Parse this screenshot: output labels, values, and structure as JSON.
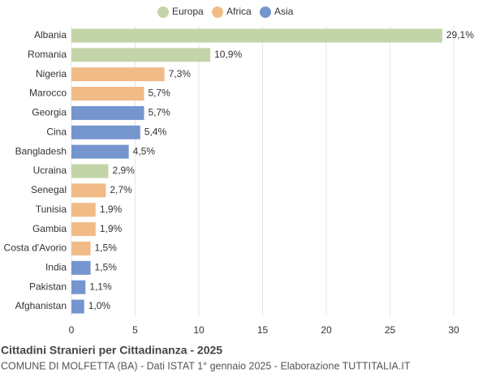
{
  "chart_data": {
    "type": "bar",
    "orientation": "horizontal",
    "title": "Cittadini Stranieri per Cittadinanza - 2025",
    "subtitle": "COMUNE DI MOLFETTA (BA) - Dati ISTAT 1° gennaio 2025 - Elaborazione TUTTITALIA.IT",
    "categories": [
      "Albania",
      "Romania",
      "Nigeria",
      "Marocco",
      "Georgia",
      "Cina",
      "Bangladesh",
      "Ucraina",
      "Senegal",
      "Tunisia",
      "Gambia",
      "Costa d'Avorio",
      "India",
      "Pakistan",
      "Afghanistan"
    ],
    "series": [
      {
        "name": "Europa",
        "color": "#c3d5a8",
        "values": [
          29.1,
          10.9,
          null,
          null,
          null,
          null,
          null,
          2.9,
          null,
          null,
          null,
          null,
          null,
          null,
          null
        ],
        "value_labels": [
          "29,1%",
          "10,9%",
          null,
          null,
          null,
          null,
          null,
          "2,9%",
          null,
          null,
          null,
          null,
          null,
          null,
          null
        ]
      },
      {
        "name": "Africa",
        "color": "#f0bb87",
        "values": [
          null,
          null,
          7.3,
          5.7,
          null,
          null,
          null,
          null,
          2.7,
          1.9,
          1.9,
          1.5,
          null,
          null,
          null
        ],
        "value_labels": [
          null,
          null,
          "7,3%",
          "5,7%",
          null,
          null,
          null,
          null,
          "2,7%",
          "1,9%",
          "1,9%",
          "1,5%",
          null,
          null,
          null
        ]
      },
      {
        "name": "Asia",
        "color": "#7595cf",
        "values": [
          null,
          null,
          null,
          null,
          5.7,
          5.4,
          4.5,
          null,
          null,
          null,
          null,
          null,
          1.5,
          1.1,
          1.0
        ],
        "value_labels": [
          null,
          null,
          null,
          null,
          "5,7%",
          "5,4%",
          "4,5%",
          null,
          null,
          null,
          null,
          null,
          "1,5%",
          "1,1%",
          "1,0%"
        ]
      }
    ],
    "xlim": [
      0,
      30
    ],
    "xticks": [
      0,
      5,
      10,
      15,
      20,
      25,
      30
    ],
    "grid": true,
    "legend": "top"
  }
}
